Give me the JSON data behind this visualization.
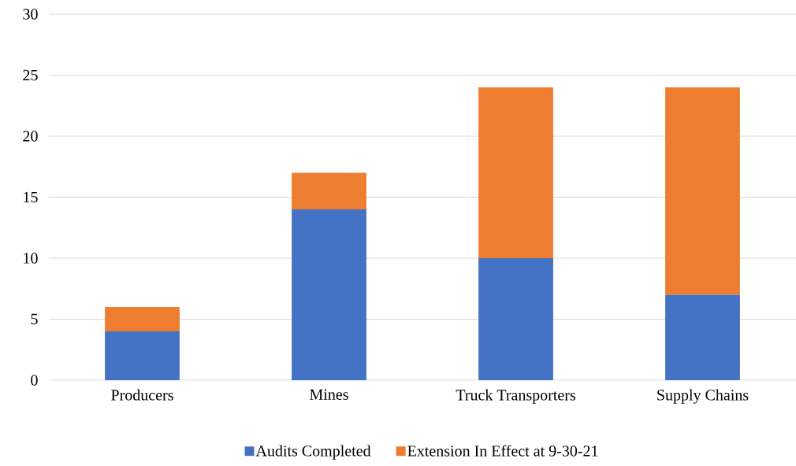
{
  "chart_data": {
    "type": "bar",
    "stacked": true,
    "categories": [
      "Producers",
      "Mines",
      "Truck Transporters",
      "Supply Chains"
    ],
    "series": [
      {
        "name": "Audits Completed",
        "color": "#4472c4",
        "values": [
          4,
          14,
          10,
          7
        ]
      },
      {
        "name": "Extension In Effect at 9-30-21",
        "color": "#ed7d31",
        "values": [
          2,
          3,
          14,
          17
        ]
      }
    ],
    "ylim": [
      0,
      30
    ],
    "yticks": [
      0,
      5,
      10,
      15,
      20,
      25,
      30
    ],
    "grid": "y",
    "legend": "bottom"
  }
}
